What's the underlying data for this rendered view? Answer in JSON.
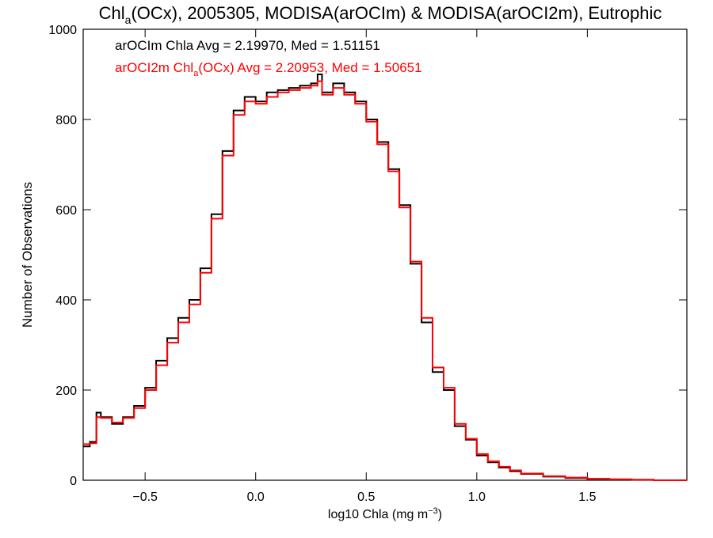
{
  "chart_data": {
    "type": "histogram",
    "title_main": "Chl",
    "title_sub": "a",
    "title_rest": "(OCx), 2005305, MODISA(arOCIm) & MODISA(arOCI2m), Eutrophic",
    "xlabel_main": "log10 Chla (mg m",
    "xlabel_sup": "−3",
    "xlabel_end": ")",
    "ylabel": "Number of Observations",
    "xlim": [
      -0.78,
      1.95
    ],
    "ylim": [
      0,
      1000
    ],
    "x_ticks": [
      -0.5,
      0.0,
      0.5,
      1.0,
      1.5
    ],
    "x_tick_labels": [
      "−0.5",
      "0.0",
      "0.5",
      "1.0",
      "1.5"
    ],
    "y_ticks": [
      0,
      200,
      400,
      600,
      800,
      1000
    ],
    "y_tick_labels": [
      "0",
      "200",
      "400",
      "600",
      "800",
      "1000"
    ],
    "legend": [
      {
        "color": "#000000",
        "text": "arOCIm Chla Avg = 2.19970, Med = 1.51151"
      },
      {
        "color": "#ff0000",
        "text_pre": "arOCI2m Chl",
        "text_sub": "a",
        "text_post": "(OCx) Avg = 2.20953, Med = 1.50651"
      }
    ],
    "series": [
      {
        "color": "#000000",
        "x": [
          -0.78,
          -0.75,
          -0.72,
          -0.7,
          -0.65,
          -0.6,
          -0.55,
          -0.5,
          -0.45,
          -0.4,
          -0.35,
          -0.3,
          -0.25,
          -0.2,
          -0.15,
          -0.1,
          -0.05,
          0.0,
          0.05,
          0.1,
          0.15,
          0.2,
          0.25,
          0.28,
          0.3,
          0.35,
          0.4,
          0.45,
          0.5,
          0.55,
          0.6,
          0.65,
          0.7,
          0.75,
          0.8,
          0.85,
          0.9,
          0.95,
          1.0,
          1.05,
          1.1,
          1.15,
          1.2,
          1.3,
          1.4,
          1.5,
          1.6,
          1.7,
          1.8,
          1.95
        ],
        "y": [
          75,
          85,
          150,
          140,
          125,
          140,
          165,
          205,
          265,
          315,
          360,
          400,
          470,
          590,
          730,
          820,
          850,
          840,
          860,
          865,
          870,
          875,
          880,
          900,
          860,
          880,
          860,
          840,
          800,
          750,
          690,
          610,
          480,
          350,
          240,
          200,
          120,
          90,
          55,
          40,
          28,
          20,
          14,
          8,
          5,
          3,
          2,
          1,
          0,
          0
        ]
      },
      {
        "color": "#ff0000",
        "x": [
          -0.78,
          -0.75,
          -0.72,
          -0.7,
          -0.65,
          -0.6,
          -0.55,
          -0.5,
          -0.45,
          -0.4,
          -0.35,
          -0.3,
          -0.25,
          -0.2,
          -0.15,
          -0.1,
          -0.05,
          0.0,
          0.05,
          0.1,
          0.15,
          0.2,
          0.25,
          0.28,
          0.3,
          0.35,
          0.4,
          0.45,
          0.5,
          0.55,
          0.6,
          0.65,
          0.7,
          0.75,
          0.8,
          0.85,
          0.9,
          0.95,
          1.0,
          1.05,
          1.1,
          1.15,
          1.2,
          1.3,
          1.4,
          1.5,
          1.6,
          1.7,
          1.8,
          1.95
        ],
        "y": [
          80,
          82,
          140,
          138,
          128,
          138,
          160,
          200,
          255,
          305,
          350,
          390,
          460,
          580,
          720,
          810,
          840,
          835,
          850,
          860,
          865,
          870,
          875,
          885,
          855,
          870,
          855,
          835,
          795,
          745,
          685,
          605,
          485,
          360,
          250,
          205,
          125,
          92,
          58,
          42,
          30,
          22,
          15,
          9,
          6,
          3,
          2,
          1,
          0,
          0
        ]
      }
    ]
  }
}
